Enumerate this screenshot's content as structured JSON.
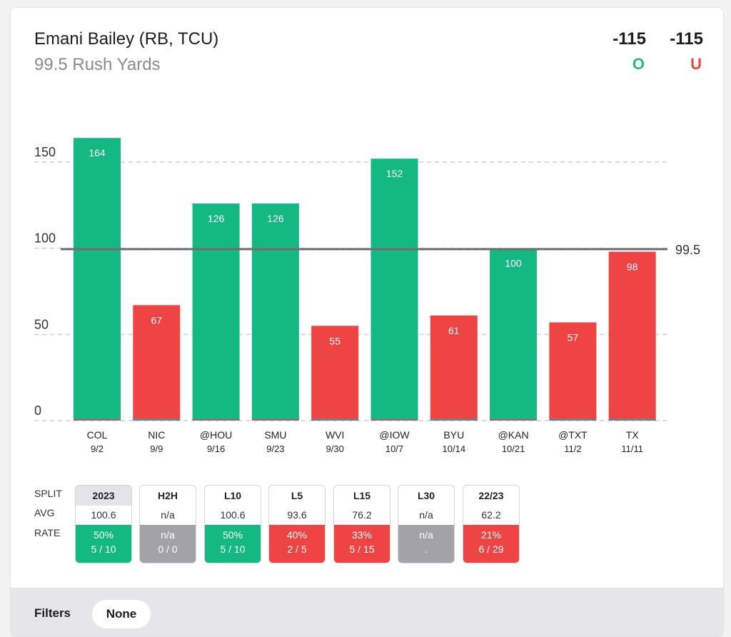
{
  "header": {
    "player": "Emani Bailey (RB, TCU)",
    "prop": "99.5 Rush Yards",
    "over_odds": "-115",
    "under_odds": "-115",
    "over_label": "O",
    "under_label": "U"
  },
  "colors": {
    "over": "#14b981",
    "under": "#ef4444",
    "neutral": "#a2a2a8"
  },
  "chart_data": {
    "type": "bar",
    "categories": [
      "COL",
      "NIC",
      "@HOU",
      "SMU",
      "WVI",
      "@IOW",
      "BYU",
      "@KAN",
      "@TXT",
      "TX"
    ],
    "dates": [
      "9/2",
      "9/9",
      "9/16",
      "9/23",
      "9/30",
      "10/7",
      "10/14",
      "10/21",
      "11/2",
      "11/11"
    ],
    "values": [
      164,
      67,
      126,
      126,
      55,
      152,
      61,
      100,
      57,
      98
    ],
    "line": 99.5,
    "line_label": "99.5",
    "yticks": [
      0,
      50,
      100,
      150
    ],
    "ylim": [
      0,
      150
    ],
    "grid": true
  },
  "splits": {
    "row_labels": [
      "SPLIT",
      "AVG",
      "RATE"
    ],
    "columns": [
      {
        "label": "2023",
        "avg": "100.6",
        "pct": "50%",
        "frac": "5 / 10",
        "status": "over",
        "active": true
      },
      {
        "label": "H2H",
        "avg": "n/a",
        "pct": "n/a",
        "frac": "0 / 0",
        "status": "neutral",
        "active": false
      },
      {
        "label": "L10",
        "avg": "100.6",
        "pct": "50%",
        "frac": "5 / 10",
        "status": "over",
        "active": false
      },
      {
        "label": "L5",
        "avg": "93.6",
        "pct": "40%",
        "frac": "2 / 5",
        "status": "under",
        "active": false
      },
      {
        "label": "L15",
        "avg": "76.2",
        "pct": "33%",
        "frac": "5 / 15",
        "status": "under",
        "active": false
      },
      {
        "label": "L30",
        "avg": "n/a",
        "pct": "n/a",
        "frac": ".",
        "status": "neutral",
        "active": false
      },
      {
        "label": "22/23",
        "avg": "62.2",
        "pct": "21%",
        "frac": "6 / 29",
        "status": "under",
        "active": false
      }
    ]
  },
  "filters": {
    "label": "Filters",
    "value": "None"
  }
}
